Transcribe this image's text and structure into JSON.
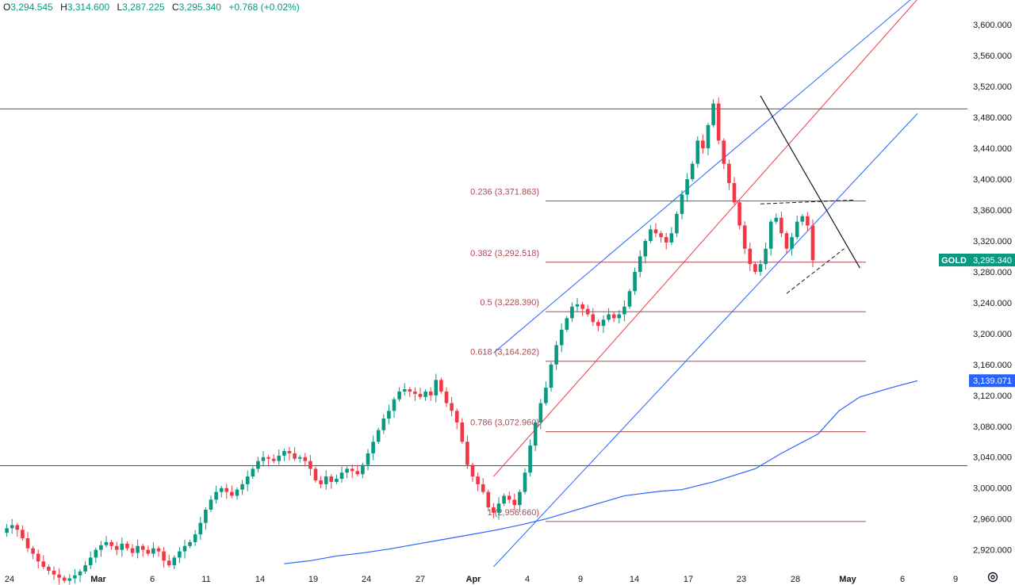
{
  "ohlc": {
    "o_label": "O",
    "o": "3,294.545",
    "h_label": "H",
    "h": "3,314.600",
    "l_label": "L",
    "l": "3,287.225",
    "c_label": "C",
    "c": "3,295.340",
    "change": "+0.768 (+0.02%)"
  },
  "colors": {
    "up": "#089981",
    "down": "#f23645",
    "channel": "#2962ff",
    "midline": "#f23645",
    "fib": "#b2474f",
    "ma": "#2962ff",
    "hline": "#555555"
  },
  "chart_data": {
    "type": "candlestick",
    "symbol": "GOLD",
    "last_price": 3295.34,
    "last_price_label": "3,295.340",
    "ma_price": 3139.071,
    "ma_price_label": "3,139.071",
    "ylim": [
      2895,
      3630
    ],
    "y_ticks": [
      {
        "v": 2920,
        "label": "2,920.000"
      },
      {
        "v": 2960,
        "label": "2,960.000"
      },
      {
        "v": 3000,
        "label": "3,000.000"
      },
      {
        "v": 3040,
        "label": "3,040.000"
      },
      {
        "v": 3080,
        "label": "3,080.000"
      },
      {
        "v": 3120,
        "label": "3,120.000"
      },
      {
        "v": 3160,
        "label": "3,160.000"
      },
      {
        "v": 3200,
        "label": "3,200.000"
      },
      {
        "v": 3240,
        "label": "3,240.000"
      },
      {
        "v": 3280,
        "label": "3,280.000"
      },
      {
        "v": 3320,
        "label": "3,320.000"
      },
      {
        "v": 3360,
        "label": "3,360.000"
      },
      {
        "v": 3400,
        "label": "3,400.000"
      },
      {
        "v": 3440,
        "label": "3,440.000"
      },
      {
        "v": 3480,
        "label": "3,480.000"
      },
      {
        "v": 3520,
        "label": "3,520.000"
      },
      {
        "v": 3560,
        "label": "3,560.000"
      },
      {
        "v": 3600,
        "label": "3,600.000"
      }
    ],
    "x_ticks": [
      {
        "label": "24",
        "bold": false
      },
      {
        "label": "Mar",
        "bold": true
      },
      {
        "label": "6",
        "bold": false
      },
      {
        "label": "11",
        "bold": false
      },
      {
        "label": "14",
        "bold": false
      },
      {
        "label": "19",
        "bold": false
      },
      {
        "label": "24",
        "bold": false
      },
      {
        "label": "27",
        "bold": false
      },
      {
        "label": "Apr",
        "bold": true
      },
      {
        "label": "4",
        "bold": false
      },
      {
        "label": "9",
        "bold": false
      },
      {
        "label": "14",
        "bold": false
      },
      {
        "label": "17",
        "bold": false
      },
      {
        "label": "23",
        "bold": false
      },
      {
        "label": "28",
        "bold": false
      },
      {
        "label": "May",
        "bold": true
      },
      {
        "label": "6",
        "bold": false
      },
      {
        "label": "9",
        "bold": false
      }
    ],
    "horizontal_levels": [
      3491,
      3029
    ],
    "fib_levels": [
      {
        "ratio": "0.236",
        "price": 3371.863,
        "label": "0.236 (3,371.863)"
      },
      {
        "ratio": "0.382",
        "price": 3292.518,
        "label": "0.382 (3,292.518)"
      },
      {
        "ratio": "0.5",
        "price": 3228.39,
        "label": "0.5 (3,228.390)"
      },
      {
        "ratio": "0.618",
        "price": 3164.262,
        "label": "0.618 (3,164.262)"
      },
      {
        "ratio": "0.786",
        "price": 3072.96,
        "label": "0.786 (3,072.960)"
      },
      {
        "ratio": "1",
        "price": 2956.66,
        "label": "1 (2,956.660)"
      }
    ],
    "price_path": [
      2942,
      2948,
      2952,
      2946,
      2935,
      2922,
      2915,
      2905,
      2898,
      2893,
      2888,
      2884,
      2880,
      2883,
      2887,
      2892,
      2900,
      2910,
      2920,
      2926,
      2930,
      2925,
      2920,
      2928,
      2922,
      2916,
      2925,
      2920,
      2915,
      2922,
      2918,
      2906,
      2900,
      2910,
      2918,
      2925,
      2930,
      2940,
      2955,
      2972,
      2985,
      2995,
      3000,
      2995,
      2990,
      2998,
      3005,
      3015,
      3025,
      3035,
      3040,
      3038,
      3035,
      3042,
      3048,
      3045,
      3038,
      3040,
      3035,
      3025,
      3010,
      3005,
      3015,
      3008,
      3012,
      3020,
      3025,
      3022,
      3018,
      3030,
      3045,
      3060,
      3075,
      3090,
      3100,
      3115,
      3125,
      3128,
      3125,
      3122,
      3118,
      3125,
      3120,
      3140,
      3125,
      3110,
      3100,
      3085,
      3060,
      3030,
      3015,
      3005,
      2995,
      2975,
      2968,
      2980,
      2990,
      2985,
      2978,
      2995,
      3020,
      3055,
      3085,
      3110,
      3130,
      3160,
      3185,
      3205,
      3220,
      3235,
      3238,
      3232,
      3225,
      3215,
      3210,
      3218,
      3225,
      3220,
      3225,
      3235,
      3255,
      3280,
      3300,
      3320,
      3335,
      3330,
      3325,
      3318,
      3330,
      3355,
      3380,
      3400,
      3420,
      3450,
      3440,
      3470,
      3498,
      3450,
      3420,
      3395,
      3370,
      3340,
      3310,
      3290,
      3280,
      3290,
      3310,
      3345,
      3350,
      3330,
      3310,
      3325,
      3345,
      3352,
      3340,
      3295
    ],
    "moving_average": [
      [
        0,
        2902
      ],
      [
        5,
        2906
      ],
      [
        10,
        2912
      ],
      [
        15,
        2916
      ],
      [
        20,
        2921
      ],
      [
        25,
        2927
      ],
      [
        30,
        2933
      ],
      [
        35,
        2939
      ],
      [
        40,
        2945
      ],
      [
        45,
        2952
      ],
      [
        50,
        2960
      ],
      [
        55,
        2970
      ],
      [
        60,
        2980
      ],
      [
        65,
        2990
      ],
      [
        72,
        2996
      ],
      [
        76,
        2998
      ],
      [
        82,
        3008
      ],
      [
        90,
        3025
      ],
      [
        95,
        3045
      ],
      [
        102,
        3070
      ],
      [
        106,
        3100
      ],
      [
        110,
        3118
      ],
      [
        116,
        3130
      ],
      [
        121,
        3139
      ]
    ],
    "channel": {
      "upper": {
        "start": {
          "bar": 94,
          "price": 3175
        },
        "end": {
          "bar": 175,
          "price": 3640
        }
      },
      "midline": {
        "start": {
          "bar": 94,
          "price": 3015
        },
        "end": {
          "bar": 175,
          "price": 3633
        }
      },
      "lower": {
        "start": {
          "bar": 94,
          "price": 2898
        },
        "end": {
          "bar": 175,
          "price": 3485
        }
      }
    },
    "trendline": {
      "start": {
        "bar": 145,
        "price": 3508
      },
      "end": {
        "bar": 164,
        "price": 3285
      }
    },
    "triangle_upper": {
      "start": {
        "bar": 145,
        "price": 3368
      },
      "end": {
        "bar": 163,
        "price": 3373
      }
    },
    "triangle_lower": {
      "start": {
        "bar": 150,
        "price": 3252
      },
      "end": {
        "bar": 161,
        "price": 3310
      }
    }
  }
}
